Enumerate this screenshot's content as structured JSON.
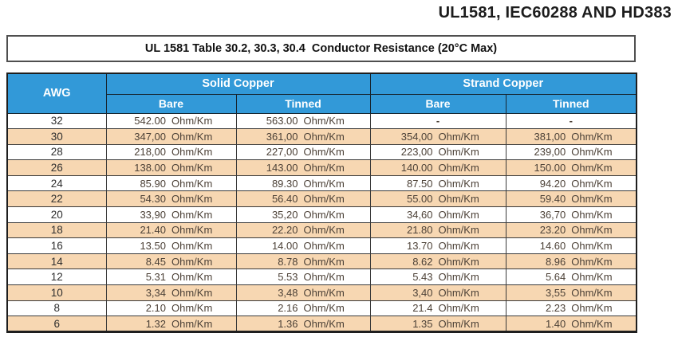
{
  "title": "UL1581, IEC60288 AND HD383",
  "caption": "UL 1581 Table 30.2, 30.3, 30.4  Conductor Resistance (20°C Max)",
  "unit": "Ohm/Km",
  "columns": {
    "awg": "AWG",
    "groups": [
      {
        "label": "Solid Copper",
        "subs": [
          "Bare",
          "Tinned"
        ]
      },
      {
        "label": "Strand Copper",
        "subs": [
          "Bare",
          "Tinned"
        ]
      }
    ]
  },
  "rows": [
    {
      "awg": "32",
      "solid_bare": "542.00",
      "solid_tinned": "563.00",
      "strand_bare": "-",
      "strand_tinned": "-"
    },
    {
      "awg": "30",
      "solid_bare": "347,00",
      "solid_tinned": "361,00",
      "strand_bare": "354,00",
      "strand_tinned": "381,00"
    },
    {
      "awg": "28",
      "solid_bare": "218,00",
      "solid_tinned": "227,00",
      "strand_bare": "223,00",
      "strand_tinned": "239,00"
    },
    {
      "awg": "26",
      "solid_bare": "138.00",
      "solid_tinned": "143.00",
      "strand_bare": "140.00",
      "strand_tinned": "150.00"
    },
    {
      "awg": "24",
      "solid_bare": "85.90",
      "solid_tinned": "89.30",
      "strand_bare": "87.50",
      "strand_tinned": "94.20"
    },
    {
      "awg": "22",
      "solid_bare": "54.30",
      "solid_tinned": "56.40",
      "strand_bare": "55.00",
      "strand_tinned": "59.40"
    },
    {
      "awg": "20",
      "solid_bare": "33,90",
      "solid_tinned": "35,20",
      "strand_bare": "34,60",
      "strand_tinned": "36,70"
    },
    {
      "awg": "18",
      "solid_bare": "21.40",
      "solid_tinned": "22.20",
      "strand_bare": "21.80",
      "strand_tinned": "23.20"
    },
    {
      "awg": "16",
      "solid_bare": "13.50",
      "solid_tinned": "14.00",
      "strand_bare": "13.70",
      "strand_tinned": "14.60"
    },
    {
      "awg": "14",
      "solid_bare": "8.45",
      "solid_tinned": "8.78",
      "strand_bare": "8.62",
      "strand_tinned": "8.96"
    },
    {
      "awg": "12",
      "solid_bare": "5.31",
      "solid_tinned": "5.53",
      "strand_bare": "5.43",
      "strand_tinned": "5.64"
    },
    {
      "awg": "10",
      "solid_bare": "3,34",
      "solid_tinned": "3,48",
      "strand_bare": "3,40",
      "strand_tinned": "3,55"
    },
    {
      "awg": "8",
      "solid_bare": "2.10",
      "solid_tinned": "2.16",
      "strand_bare": "21.4",
      "strand_tinned": "2.23"
    },
    {
      "awg": "6",
      "solid_bare": "1.32",
      "solid_tinned": "1.36",
      "strand_bare": "1.35",
      "strand_tinned": "1.40"
    }
  ],
  "colors": {
    "header_blue": "#3299D8",
    "row_peach": "#F7D7B2",
    "row_white": "#FFFFFF",
    "header_text": "#FFFFFF",
    "value_text": "#4C4137",
    "outer_border": "#1E1E1E"
  }
}
